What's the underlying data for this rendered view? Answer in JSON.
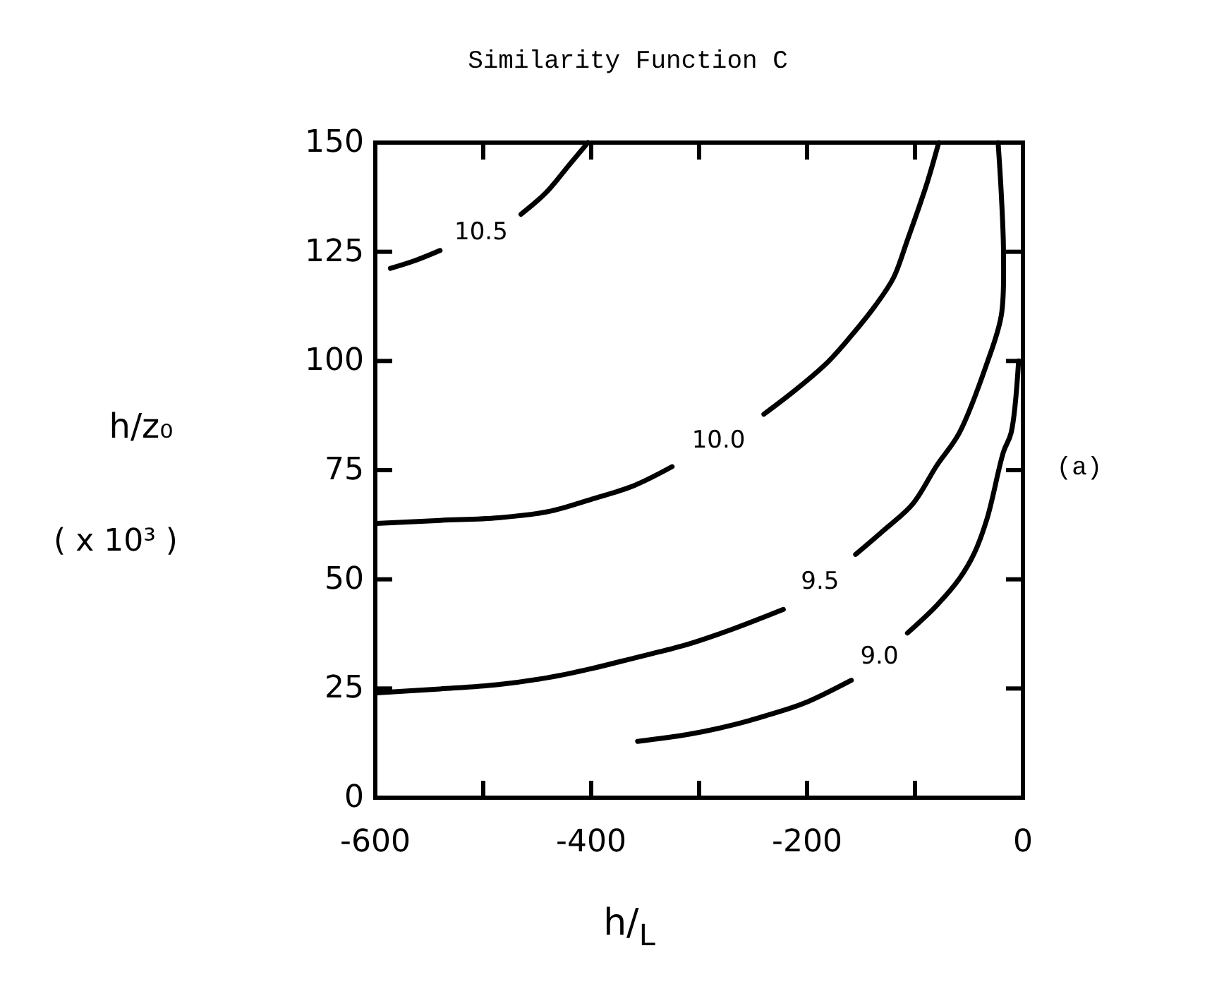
{
  "chart_data": {
    "type": "line",
    "title": "Similarity Function C",
    "xlabel": "h/$_{L}$",
    "ylabel": "h/z₀ ( x 10³ )",
    "annotations": [
      "(a)"
    ],
    "xlim": [
      -600,
      0
    ],
    "ylim": [
      0,
      150
    ],
    "xticks": [
      -600,
      {
        "value": -500,
        "label": null
      },
      -400,
      {
        "value": -300,
        "label": null
      },
      -200,
      {
        "value": -100,
        "label": null
      },
      0
    ],
    "yticks": [
      0,
      25,
      50,
      75,
      100,
      125,
      150
    ],
    "line_style": "solid",
    "series": [
      {
        "name": "10.5",
        "color": "#000000",
        "x": [
          -586,
          -563,
          -540,
          -502,
          -465,
          -442,
          -420,
          -403
        ],
        "values": [
          121.2,
          123,
          125.3,
          null,
          133.6,
          138.5,
          145,
          150
        ]
      },
      {
        "name": "10.0",
        "color": "#000000",
        "x": [
          -599,
          -540,
          -486,
          -440,
          -399,
          -360,
          -325,
          -282,
          -240,
          -210,
          -181,
          -160,
          -137,
          -120,
          -107,
          -89,
          -78
        ],
        "values": [
          62.8,
          63.5,
          64.1,
          65.5,
          68.4,
          71.5,
          75.8,
          null,
          87.8,
          93.5,
          99.7,
          105.5,
          112.6,
          119,
          127.7,
          140.6,
          150
        ]
      },
      {
        "name": "9.5",
        "color": "#000000",
        "x": [
          -599,
          -540,
          -486,
          -440,
          -399,
          -360,
          -312,
          -270,
          -222,
          -188,
          -155,
          -130,
          -102,
          -80,
          -59,
          -33,
          -20,
          -18,
          -20,
          -23
        ],
        "values": [
          24,
          24.9,
          25.9,
          27.5,
          29.6,
          32,
          35,
          38.5,
          43.1,
          null,
          55.7,
          61,
          67.3,
          76,
          83.5,
          99.7,
          110.5,
          124.5,
          138,
          150
        ]
      },
      {
        "name": "9.0",
        "color": "#000000",
        "x": [
          -357,
          -310,
          -268,
          -235,
          -203,
          -159,
          -133,
          -107,
          -80,
          -59,
          -45,
          -33,
          -18,
          -11,
          -4
        ],
        "values": [
          12.9,
          14.5,
          16.7,
          19,
          21.6,
          26.9,
          null,
          37.7,
          44,
          50.1,
          56,
          64.1,
          79.2,
          83.5,
          100
        ]
      }
    ]
  }
}
